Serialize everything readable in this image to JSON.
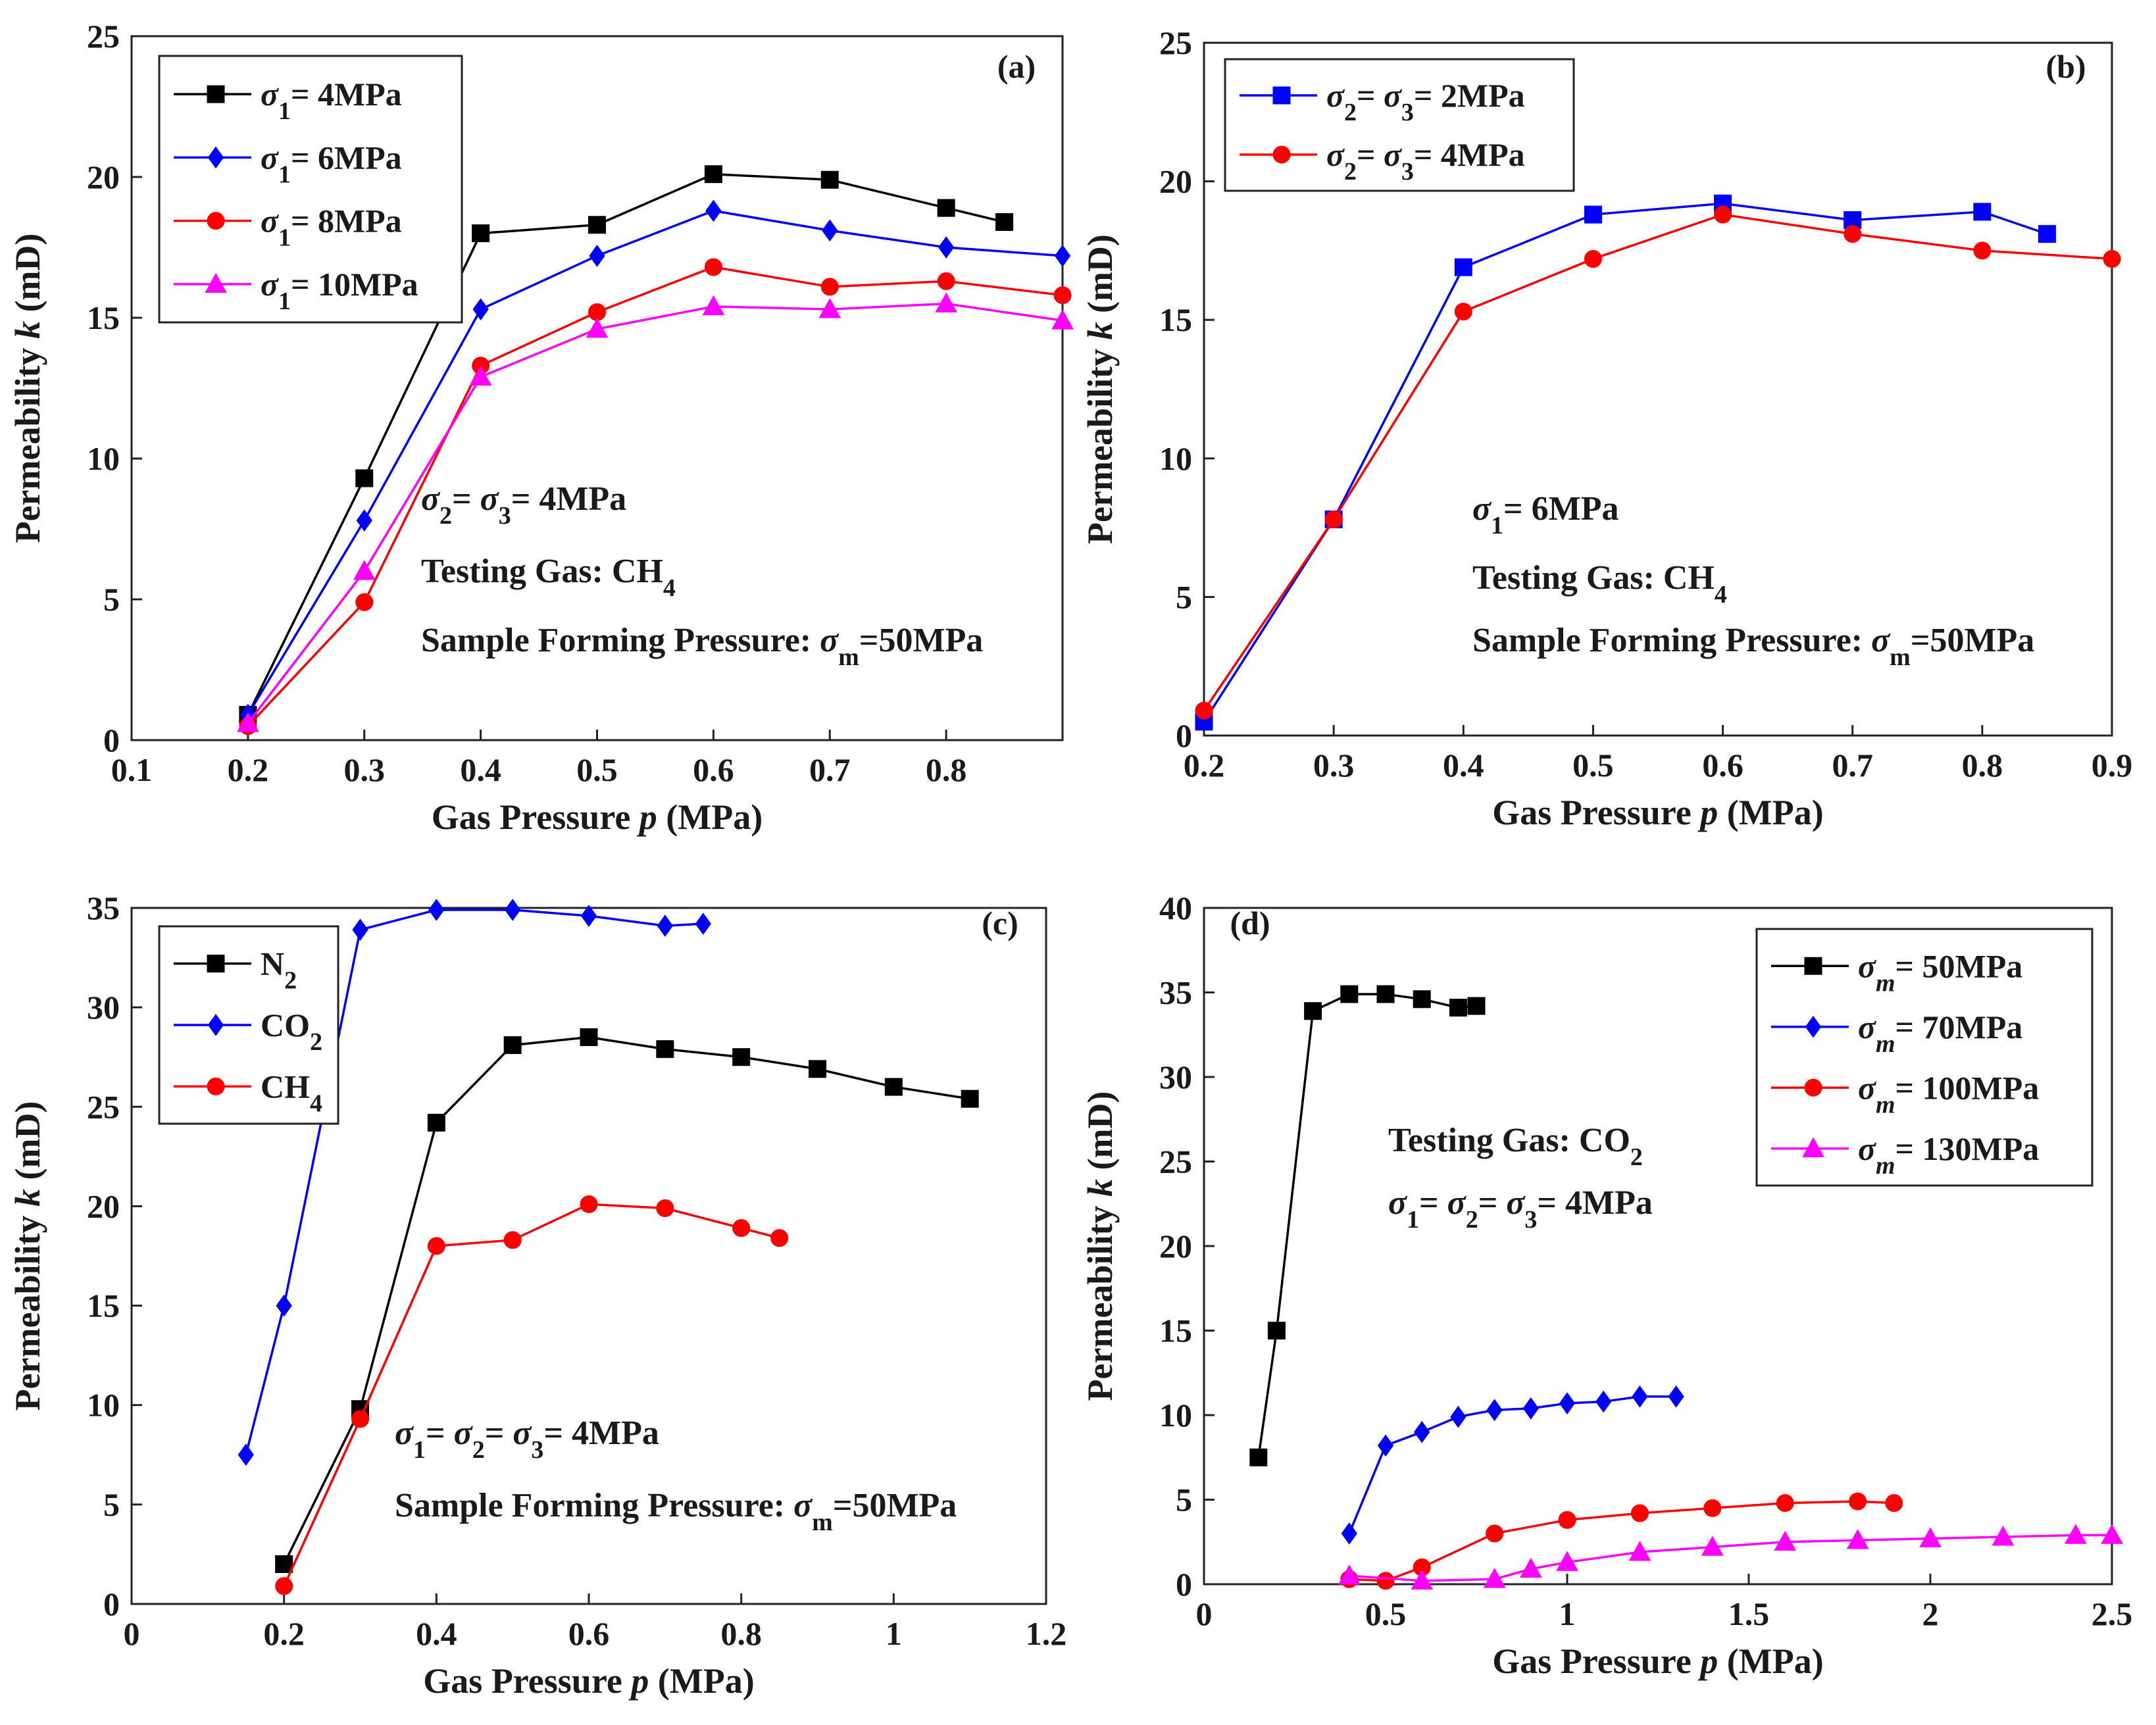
{
  "figure": "Permeability versus gas pressure, four panels",
  "colors": {
    "black": "#000000",
    "blue": "#0000ff",
    "red": "#ff0000",
    "magenta": "#ff00ff"
  },
  "chart_data": [
    {
      "id": "a",
      "type": "line",
      "panel_label": "(a)",
      "xlabel": "Gas Pressure p (MPa)",
      "ylabel": "Permeability k (mD)",
      "xlim": [
        0.1,
        0.9
      ],
      "ylim": [
        0,
        25
      ],
      "xticks": [
        "0.1",
        "0.2",
        "0.3",
        "0.4",
        "0.5",
        "0.6",
        "0.7",
        "0.8"
      ],
      "yticks": [
        "0",
        "5",
        "10",
        "15",
        "20",
        "25"
      ],
      "legend_position": "top-left",
      "series": [
        {
          "name": "σ1= 4MPa",
          "sym": "σ",
          "sub": "1",
          "rest": "= 4MPa",
          "color": "#000000",
          "marker": "square",
          "x": [
            0.2,
            0.3,
            0.4,
            0.5,
            0.6,
            0.7,
            0.8,
            0.85
          ],
          "y": [
            0.9,
            9.3,
            18.0,
            18.3,
            20.1,
            19.9,
            18.9,
            18.4
          ]
        },
        {
          "name": "σ1= 6MPa",
          "sym": "σ",
          "sub": "1",
          "rest": "= 6MPa",
          "color": "#0000ff",
          "marker": "diamond",
          "x": [
            0.2,
            0.3,
            0.4,
            0.5,
            0.6,
            0.7,
            0.8,
            0.9
          ],
          "y": [
            0.9,
            7.8,
            15.3,
            17.2,
            18.8,
            18.1,
            17.5,
            17.2
          ]
        },
        {
          "name": "σ1= 8MPa",
          "sym": "σ",
          "sub": "1",
          "rest": "= 8MPa",
          "color": "#ff0000",
          "marker": "circle",
          "x": [
            0.2,
            0.3,
            0.4,
            0.5,
            0.6,
            0.7,
            0.8,
            0.9
          ],
          "y": [
            0.5,
            4.9,
            13.3,
            15.2,
            16.8,
            16.1,
            16.3,
            15.8
          ]
        },
        {
          "name": "σ1= 10MPa",
          "sym": "σ",
          "sub": "1",
          "rest": "= 10MPa",
          "color": "#ff00ff",
          "marker": "triangle",
          "x": [
            0.2,
            0.3,
            0.4,
            0.5,
            0.6,
            0.7,
            0.8,
            0.9
          ],
          "y": [
            0.6,
            6.0,
            12.9,
            14.6,
            15.4,
            15.3,
            15.5,
            14.9
          ]
        }
      ],
      "annotations": [
        {
          "key": "stress",
          "parts": [
            {
              "t": "σ",
              "i": true
            },
            {
              "t": "2",
              "sub": true
            },
            {
              "t": "= "
            },
            {
              "t": "σ",
              "i": true
            },
            {
              "t": "3",
              "sub": true
            },
            {
              "t": "= 4MPa"
            }
          ]
        },
        {
          "key": "gas",
          "parts": [
            {
              "t": "Testing Gas:  CH"
            },
            {
              "t": "4",
              "sub": true
            }
          ]
        },
        {
          "key": "form",
          "parts": [
            {
              "t": "Sample Forming Pressure: "
            },
            {
              "t": "σ",
              "i": true
            },
            {
              "t": "m",
              "sub": true
            },
            {
              "t": "=50MPa"
            }
          ]
        }
      ]
    },
    {
      "id": "b",
      "type": "line",
      "panel_label": "(b)",
      "xlabel": "Gas Pressure p (MPa)",
      "ylabel": "Permeability k (mD)",
      "xlim": [
        0.2,
        0.9
      ],
      "ylim": [
        0,
        25
      ],
      "xticks": [
        "0.2",
        "0.3",
        "0.4",
        "0.5",
        "0.6",
        "0.7",
        "0.8",
        "0.9"
      ],
      "yticks": [
        "0",
        "5",
        "10",
        "15",
        "20",
        "25"
      ],
      "legend_position": "top-left",
      "series": [
        {
          "name": "σ2= σ3= 2MPa",
          "color": "#0000ff",
          "marker": "square",
          "x": [
            0.2,
            0.3,
            0.4,
            0.5,
            0.6,
            0.7,
            0.8,
            0.85
          ],
          "y": [
            0.5,
            7.8,
            16.9,
            18.8,
            19.2,
            18.6,
            18.9,
            18.1
          ]
        },
        {
          "name": "σ2= σ3= 4MPa",
          "color": "#ff0000",
          "marker": "circle",
          "x": [
            0.2,
            0.3,
            0.4,
            0.5,
            0.6,
            0.7,
            0.8,
            0.9
          ],
          "y": [
            0.9,
            7.8,
            15.3,
            17.2,
            18.8,
            18.1,
            17.5,
            17.2
          ]
        }
      ],
      "annotations": [
        {
          "key": "stress",
          "parts": [
            {
              "t": "σ",
              "i": true
            },
            {
              "t": "1",
              "sub": true
            },
            {
              "t": "= 6MPa"
            }
          ]
        },
        {
          "key": "gas",
          "parts": [
            {
              "t": "Testing Gas:  CH"
            },
            {
              "t": "4",
              "sub": true
            }
          ]
        },
        {
          "key": "form",
          "parts": [
            {
              "t": "Sample Forming Pressure: "
            },
            {
              "t": "σ",
              "i": true
            },
            {
              "t": "m",
              "sub": true
            },
            {
              "t": "=50MPa"
            }
          ]
        }
      ]
    },
    {
      "id": "c",
      "type": "line",
      "panel_label": "(c)",
      "xlabel": "Gas Pressure p (MPa)",
      "ylabel": "Permeability k (mD)",
      "xlim": [
        0,
        1.2
      ],
      "ylim": [
        0,
        35
      ],
      "xticks": [
        "0",
        "0.2",
        "0.4",
        "0.6",
        "0.8",
        "1",
        "1.2"
      ],
      "yticks": [
        "0",
        "5",
        "10",
        "15",
        "20",
        "25",
        "30",
        "35"
      ],
      "legend_position": "top-left",
      "series": [
        {
          "name": "N2",
          "color": "#000000",
          "marker": "square",
          "x": [
            0.2,
            0.3,
            0.4,
            0.5,
            0.6,
            0.7,
            0.8,
            0.9,
            1.0,
            1.1
          ],
          "y": [
            2.0,
            9.8,
            24.2,
            28.1,
            28.5,
            27.9,
            27.5,
            26.9,
            26.0,
            25.4
          ]
        },
        {
          "name": "CO2",
          "color": "#0000ff",
          "marker": "diamond",
          "x": [
            0.15,
            0.2,
            0.3,
            0.4,
            0.5,
            0.6,
            0.7,
            0.75
          ],
          "y": [
            7.5,
            15.0,
            33.9,
            34.9,
            34.9,
            34.6,
            34.1,
            34.2
          ]
        },
        {
          "name": "CH4",
          "color": "#ff0000",
          "marker": "circle",
          "x": [
            0.2,
            0.3,
            0.4,
            0.5,
            0.6,
            0.7,
            0.8,
            0.85
          ],
          "y": [
            0.9,
            9.3,
            18.0,
            18.3,
            20.1,
            19.9,
            18.9,
            18.4
          ]
        }
      ],
      "annotations": [
        {
          "key": "stress",
          "parts": [
            {
              "t": "σ",
              "i": true
            },
            {
              "t": "1",
              "sub": true
            },
            {
              "t": "= "
            },
            {
              "t": "σ",
              "i": true
            },
            {
              "t": "2",
              "sub": true
            },
            {
              "t": "= "
            },
            {
              "t": "σ",
              "i": true
            },
            {
              "t": "3",
              "sub": true
            },
            {
              "t": "= 4MPa"
            }
          ]
        },
        {
          "key": "form",
          "parts": [
            {
              "t": "Sample Forming Pressure: "
            },
            {
              "t": "σ",
              "i": true
            },
            {
              "t": "m",
              "sub": true
            },
            {
              "t": "=50MPa"
            }
          ]
        }
      ]
    },
    {
      "id": "d",
      "type": "line",
      "panel_label": "(d)",
      "xlabel": "Gas Pressure p (MPa)",
      "ylabel": "Permeability k (mD)",
      "xlim": [
        0,
        2.5
      ],
      "ylim": [
        0,
        40
      ],
      "xticks": [
        "0",
        "0.5",
        "1",
        "1.5",
        "2",
        "2.5"
      ],
      "yticks": [
        "0",
        "5",
        "10",
        "15",
        "20",
        "25",
        "30",
        "35",
        "40"
      ],
      "legend_position": "top-right",
      "series": [
        {
          "name": "σm= 50MPa",
          "color": "#000000",
          "marker": "square",
          "x": [
            0.15,
            0.2,
            0.3,
            0.4,
            0.5,
            0.6,
            0.7,
            0.75
          ],
          "y": [
            7.5,
            15.0,
            33.9,
            34.9,
            34.9,
            34.6,
            34.1,
            34.2
          ]
        },
        {
          "name": "σm= 70MPa",
          "color": "#0000ff",
          "marker": "diamond",
          "x": [
            0.4,
            0.5,
            0.6,
            0.7,
            0.8,
            0.9,
            1.0,
            1.1,
            1.2,
            1.3
          ],
          "y": [
            3.0,
            8.2,
            9.0,
            9.9,
            10.3,
            10.4,
            10.7,
            10.8,
            11.1,
            11.1
          ]
        },
        {
          "name": "σm= 100MPa",
          "color": "#ff0000",
          "marker": "circle",
          "x": [
            0.4,
            0.5,
            0.6,
            0.8,
            1.0,
            1.2,
            1.4,
            1.6,
            1.8,
            1.9
          ],
          "y": [
            0.3,
            0.2,
            1.0,
            3.0,
            3.8,
            4.2,
            4.5,
            4.8,
            4.9,
            4.8
          ]
        },
        {
          "name": "σm= 130MPa",
          "color": "#ff00ff",
          "marker": "triangle",
          "x": [
            0.4,
            0.6,
            0.8,
            0.9,
            1.0,
            1.2,
            1.4,
            1.6,
            1.8,
            2.0,
            2.2,
            2.4,
            2.5
          ],
          "y": [
            0.5,
            0.2,
            0.3,
            0.9,
            1.3,
            1.9,
            2.2,
            2.5,
            2.6,
            2.7,
            2.8,
            2.9,
            2.9
          ]
        }
      ],
      "annotations": [
        {
          "key": "gas",
          "parts": [
            {
              "t": "Testing Gas: CO"
            },
            {
              "t": "2",
              "sub": true
            }
          ]
        },
        {
          "key": "stress",
          "parts": [
            {
              "t": "σ",
              "i": true
            },
            {
              "t": "1",
              "sub": true
            },
            {
              "t": "= "
            },
            {
              "t": "σ",
              "i": true
            },
            {
              "t": "2",
              "sub": true
            },
            {
              "t": "= "
            },
            {
              "t": "σ",
              "i": true
            },
            {
              "t": "3",
              "sub": true
            },
            {
              "t": "= 4MPa"
            }
          ]
        }
      ]
    }
  ]
}
